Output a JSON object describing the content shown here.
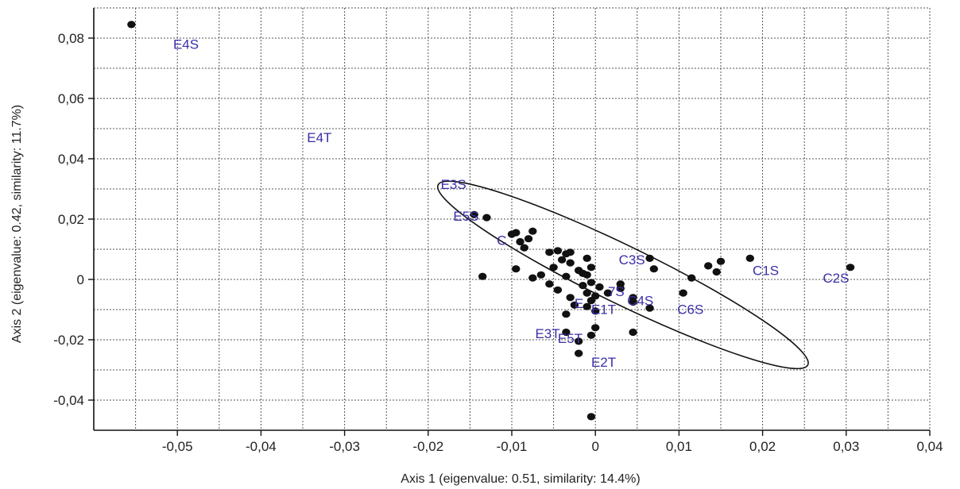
{
  "chart_data": {
    "type": "scatter",
    "xlabel": "Axis 1 (eigenvalue: 0.51, similarity: 14.4%)",
    "ylabel": "Axis 2 (eigenvalue: 0.42, similarity: 11.7%)",
    "xlim": [
      -0.06,
      0.04
    ],
    "ylim": [
      -0.05,
      0.09
    ],
    "grid": true,
    "x_ticks": [
      {
        "value": -0.05,
        "label": "-0,05"
      },
      {
        "value": -0.04,
        "label": "-0,04"
      },
      {
        "value": -0.03,
        "label": "-0,03"
      },
      {
        "value": -0.02,
        "label": "-0,02"
      },
      {
        "value": -0.01,
        "label": "-0,01"
      },
      {
        "value": 0,
        "label": "0"
      },
      {
        "value": 0.01,
        "label": "0,01"
      },
      {
        "value": 0.02,
        "label": "0,02"
      },
      {
        "value": 0.03,
        "label": "0,03"
      },
      {
        "value": 0.04,
        "label": "0,04"
      }
    ],
    "y_ticks": [
      {
        "value": 0.08,
        "label": "0,08"
      },
      {
        "value": 0.06,
        "label": "0,06"
      },
      {
        "value": 0.04,
        "label": "0,04"
      },
      {
        "value": 0.02,
        "label": "0,02"
      },
      {
        "value": 0,
        "label": "0"
      },
      {
        "value": -0.02,
        "label": "-0,02"
      },
      {
        "value": -0.04,
        "label": "-0,04"
      }
    ],
    "points": [
      [
        -0.0555,
        0.0845
      ],
      [
        -0.0145,
        0.0215
      ],
      [
        -0.013,
        0.0205
      ],
      [
        -0.0135,
        0.001
      ],
      [
        -0.01,
        0.015
      ],
      [
        -0.0095,
        0.0155
      ],
      [
        -0.009,
        0.0125
      ],
      [
        -0.0085,
        0.0105
      ],
      [
        -0.008,
        0.0135
      ],
      [
        -0.0075,
        0.016
      ],
      [
        -0.0095,
        0.0035
      ],
      [
        -0.0075,
        0.0005
      ],
      [
        -0.0055,
        0.009
      ],
      [
        -0.0045,
        0.0095
      ],
      [
        -0.0035,
        0.0085
      ],
      [
        -0.003,
        0.009
      ],
      [
        -0.004,
        0.0065
      ],
      [
        -0.003,
        0.0055
      ],
      [
        -0.002,
        0.003
      ],
      [
        -0.005,
        0.004
      ],
      [
        -0.0035,
        0.001
      ],
      [
        -0.0055,
        -0.0015
      ],
      [
        -0.0065,
        0.0015
      ],
      [
        -0.0045,
        -0.0035
      ],
      [
        -0.003,
        -0.006
      ],
      [
        -0.0015,
        -0.002
      ],
      [
        -0.001,
        -0.0045
      ],
      [
        -0.0005,
        -0.001
      ],
      [
        -0.001,
        0.0015
      ],
      [
        -0.0015,
        0.002
      ],
      [
        -0.0005,
        0.004
      ],
      [
        -0.001,
        0.007
      ],
      [
        -0.0005,
        -0.007
      ],
      [
        -0.001,
        -0.009
      ],
      [
        0.0,
        -0.0055
      ],
      [
        0.0,
        -0.0105
      ],
      [
        0.0005,
        -0.0025
      ],
      [
        0.0,
        -0.016
      ],
      [
        -0.0005,
        -0.0185
      ],
      [
        -0.002,
        -0.0205
      ],
      [
        -0.002,
        -0.0245
      ],
      [
        -0.0035,
        -0.0175
      ],
      [
        -0.0035,
        -0.0115
      ],
      [
        -0.0025,
        -0.0085
      ],
      [
        0.0015,
        -0.0045
      ],
      [
        0.003,
        -0.0015
      ],
      [
        0.003,
        -0.003
      ],
      [
        0.0045,
        -0.006
      ],
      [
        0.0045,
        -0.0075
      ],
      [
        0.0065,
        -0.0095
      ],
      [
        0.0065,
        0.007
      ],
      [
        0.007,
        0.0035
      ],
      [
        0.0045,
        -0.0175
      ],
      [
        0.0105,
        -0.0045
      ],
      [
        0.0115,
        0.0005
      ],
      [
        0.0135,
        0.0045
      ],
      [
        0.0145,
        0.0025
      ],
      [
        0.015,
        0.006
      ],
      [
        0.0185,
        0.007
      ],
      [
        0.0305,
        0.004
      ],
      [
        -0.0005,
        -0.0455
      ]
    ],
    "point_labels": [
      {
        "text": "E4S",
        "x": -0.0505,
        "y": 0.0765
      },
      {
        "text": "E4T",
        "x": -0.0345,
        "y": 0.0455
      },
      {
        "text": "E3S",
        "x": -0.0185,
        "y": 0.03
      },
      {
        "text": "E5S",
        "x": -0.017,
        "y": 0.0195
      },
      {
        "text": "C",
        "x": -0.0118,
        "y": 0.0115
      },
      {
        "text": "C3S",
        "x": 0.0028,
        "y": 0.005
      },
      {
        "text": "C1S",
        "x": 0.0188,
        "y": 0.0015
      },
      {
        "text": "C2S",
        "x": 0.0272,
        "y": -0.001
      },
      {
        "text": "7S",
        "x": 0.0015,
        "y": -0.0055
      },
      {
        "text": "C4S",
        "x": 0.0038,
        "y": -0.0085
      },
      {
        "text": "C6S",
        "x": 0.0098,
        "y": -0.0115
      },
      {
        "text": "E",
        "x": -0.0025,
        "y": -0.0095
      },
      {
        "text": "E1T",
        "x": -0.0005,
        "y": -0.0115
      },
      {
        "text": "E3T",
        "x": -0.0072,
        "y": -0.0195
      },
      {
        "text": "E5T",
        "x": -0.0045,
        "y": -0.021
      },
      {
        "text": "E2T",
        "x": -0.0005,
        "y": -0.029
      }
    ],
    "ellipse": {
      "cx": 0.0033,
      "cy": 0.0015,
      "rx": 0.0246,
      "ry": 0.0245,
      "rotation_deg": 26
    }
  }
}
